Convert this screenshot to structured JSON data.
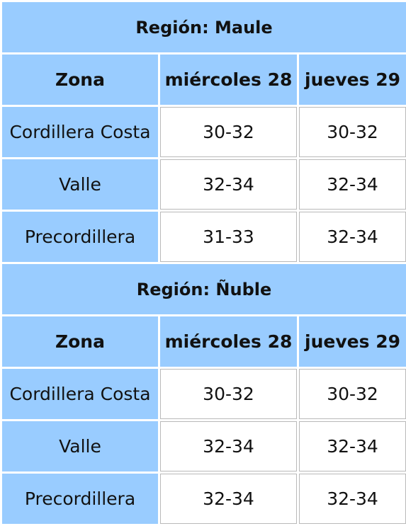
{
  "regions": [
    {
      "title": "Región: Maule",
      "headers": [
        "Zona",
        "miércoles 28",
        "jueves 29"
      ],
      "rows": [
        {
          "zona": "Cordillera Costa",
          "d1": "30-32",
          "d2": "30-32"
        },
        {
          "zona": "Valle",
          "d1": "32-34",
          "d2": "32-34"
        },
        {
          "zona": "Precordillera",
          "d1": "31-33",
          "d2": "32-34"
        }
      ]
    },
    {
      "title": "Región: Ñuble",
      "headers": [
        "Zona",
        "miércoles 28",
        "jueves 29"
      ],
      "rows": [
        {
          "zona": "Cordillera Costa",
          "d1": "30-32",
          "d2": "30-32"
        },
        {
          "zona": "Valle",
          "d1": "32-34",
          "d2": "32-34"
        },
        {
          "zona": "Precordillera",
          "d1": "32-34",
          "d2": "32-34"
        }
      ]
    }
  ],
  "colors": {
    "header_bg": "#99ccff",
    "cell_bg": "#ffffff",
    "cell_border": "#b9b9b9"
  }
}
